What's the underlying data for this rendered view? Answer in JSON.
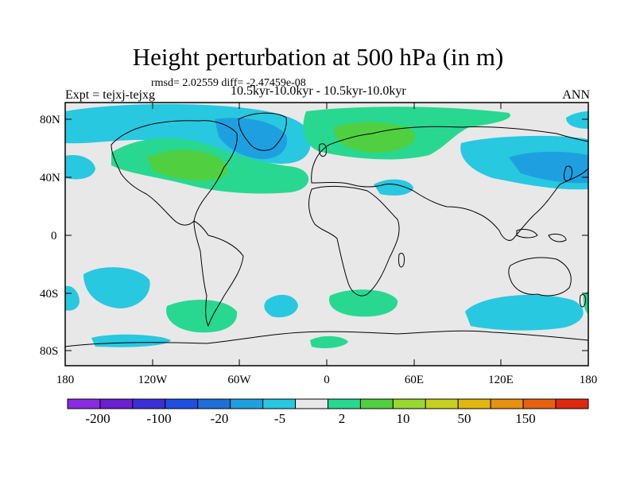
{
  "title": "Height perturbation at 500 hPa (in m)",
  "stats": "rmsd= 2.02559 diff= -2.47459e-08",
  "experiment": "Expt = tejxj-tejxg",
  "period": "10.5kyr-10.0kyr - 10.5kyr-10.0kyr",
  "season": "ANN",
  "lat_ticks": [
    "80N",
    "40N",
    "0",
    "40S",
    "80S"
  ],
  "lon_ticks": [
    "180",
    "120W",
    "60W",
    "0",
    "60E",
    "120E",
    "180"
  ],
  "colorbar": {
    "colors": [
      "#8a2be2",
      "#6a1fd0",
      "#3b2fd8",
      "#1f4fe0",
      "#1e6fd8",
      "#1ea0e0",
      "#28c8e0",
      "#e8e8e8",
      "#28d890",
      "#50d040",
      "#98d830",
      "#c8d020",
      "#e0b810",
      "#e89010",
      "#e86010",
      "#e02810"
    ],
    "labels": [
      "-200",
      "-100",
      "-20",
      "-5",
      "2",
      "10",
      "50",
      "150"
    ]
  }
}
